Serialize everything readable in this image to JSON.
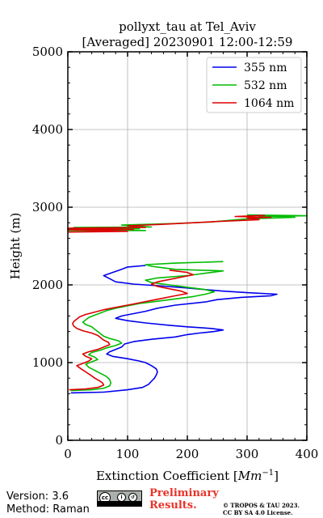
{
  "chart_data": {
    "type": "line",
    "title_line1": "pollyxt_tau at Tel_Aviv",
    "title_line2": "[Averaged] 20230901 12:00-12:59",
    "xlabel": "Extinction Coefficient [",
    "xlabel_unit": "Mm",
    "xlabel_exp": "−1",
    "xlabel_close": "]",
    "ylabel": "Height (m)",
    "xlim": [
      0,
      400
    ],
    "ylim": [
      0,
      5000
    ],
    "xticks": [
      0,
      100,
      200,
      300,
      400
    ],
    "yticks": [
      0,
      1000,
      2000,
      3000,
      4000,
      5000
    ],
    "grid": true,
    "legend_position": "top-right",
    "series": [
      {
        "name": "355 nm",
        "color": "#0000ee",
        "points": [
          [
            5,
            610
          ],
          [
            60,
            620
          ],
          [
            100,
            650
          ],
          [
            125,
            680
          ],
          [
            135,
            720
          ],
          [
            140,
            760
          ],
          [
            145,
            800
          ],
          [
            148,
            840
          ],
          [
            150,
            880
          ],
          [
            148,
            920
          ],
          [
            140,
            960
          ],
          [
            130,
            1000
          ],
          [
            120,
            1020
          ],
          [
            100,
            1050
          ],
          [
            75,
            1080
          ],
          [
            65,
            1110
          ],
          [
            70,
            1140
          ],
          [
            80,
            1170
          ],
          [
            90,
            1200
          ],
          [
            95,
            1240
          ],
          [
            110,
            1270
          ],
          [
            140,
            1300
          ],
          [
            180,
            1330
          ],
          [
            200,
            1360
          ],
          [
            220,
            1380
          ],
          [
            245,
            1400
          ],
          [
            260,
            1420
          ],
          [
            240,
            1440
          ],
          [
            200,
            1460
          ],
          [
            170,
            1480
          ],
          [
            130,
            1510
          ],
          [
            100,
            1540
          ],
          [
            80,
            1570
          ],
          [
            90,
            1600
          ],
          [
            110,
            1630
          ],
          [
            130,
            1660
          ],
          [
            150,
            1700
          ],
          [
            180,
            1740
          ],
          [
            230,
            1780
          ],
          [
            250,
            1810
          ],
          [
            290,
            1840
          ],
          [
            340,
            1860
          ],
          [
            350,
            1880
          ],
          [
            300,
            1900
          ],
          [
            260,
            1920
          ],
          [
            230,
            1940
          ],
          [
            200,
            1960
          ],
          [
            150,
            1990
          ],
          [
            110,
            2010
          ],
          [
            80,
            2040
          ],
          [
            70,
            2080
          ],
          [
            60,
            2120
          ],
          [
            75,
            2160
          ],
          [
            90,
            2200
          ],
          [
            100,
            2230
          ],
          [
            130,
            2250
          ]
        ]
      },
      {
        "name": "532 nm",
        "color": "#00bb00",
        "points": [
          [
            5,
            640
          ],
          [
            40,
            650
          ],
          [
            60,
            670
          ],
          [
            70,
            700
          ],
          [
            72,
            740
          ],
          [
            70,
            780
          ],
          [
            65,
            820
          ],
          [
            55,
            860
          ],
          [
            45,
            900
          ],
          [
            35,
            940
          ],
          [
            30,
            980
          ],
          [
            40,
            1010
          ],
          [
            50,
            1040
          ],
          [
            45,
            1070
          ],
          [
            35,
            1100
          ],
          [
            40,
            1130
          ],
          [
            55,
            1160
          ],
          [
            65,
            1190
          ],
          [
            80,
            1220
          ],
          [
            90,
            1250
          ],
          [
            85,
            1280
          ],
          [
            70,
            1310
          ],
          [
            60,
            1340
          ],
          [
            55,
            1370
          ],
          [
            50,
            1400
          ],
          [
            45,
            1430
          ],
          [
            40,
            1460
          ],
          [
            30,
            1490
          ],
          [
            25,
            1520
          ],
          [
            30,
            1550
          ],
          [
            35,
            1580
          ],
          [
            45,
            1610
          ],
          [
            55,
            1640
          ],
          [
            65,
            1670
          ],
          [
            80,
            1700
          ],
          [
            100,
            1730
          ],
          [
            120,
            1760
          ],
          [
            150,
            1790
          ],
          [
            180,
            1820
          ],
          [
            210,
            1850
          ],
          [
            230,
            1880
          ],
          [
            245,
            1910
          ],
          [
            230,
            1940
          ],
          [
            200,
            1970
          ],
          [
            170,
            2000
          ],
          [
            140,
            2030
          ],
          [
            130,
            2060
          ],
          [
            150,
            2090
          ],
          [
            200,
            2120
          ],
          [
            230,
            2150
          ],
          [
            260,
            2180
          ],
          [
            180,
            2200
          ],
          [
            160,
            2220
          ],
          [
            140,
            2240
          ],
          [
            130,
            2260
          ],
          [
            180,
            2280
          ],
          [
            260,
            2300
          ]
        ]
      },
      {
        "name": "1064 nm",
        "color": "#dd0000",
        "points": [
          [
            2,
            650
          ],
          [
            30,
            660
          ],
          [
            50,
            680
          ],
          [
            60,
            710
          ],
          [
            58,
            740
          ],
          [
            52,
            770
          ],
          [
            45,
            800
          ],
          [
            38,
            840
          ],
          [
            30,
            880
          ],
          [
            22,
            920
          ],
          [
            15,
            960
          ],
          [
            25,
            990
          ],
          [
            35,
            1020
          ],
          [
            40,
            1050
          ],
          [
            30,
            1080
          ],
          [
            25,
            1110
          ],
          [
            35,
            1140
          ],
          [
            50,
            1170
          ],
          [
            60,
            1200
          ],
          [
            70,
            1230
          ],
          [
            68,
            1260
          ],
          [
            60,
            1290
          ],
          [
            55,
            1320
          ],
          [
            50,
            1350
          ],
          [
            40,
            1380
          ],
          [
            25,
            1410
          ],
          [
            15,
            1440
          ],
          [
            10,
            1470
          ],
          [
            8,
            1500
          ],
          [
            10,
            1530
          ],
          [
            15,
            1560
          ],
          [
            20,
            1590
          ],
          [
            30,
            1620
          ],
          [
            45,
            1650
          ],
          [
            60,
            1680
          ],
          [
            80,
            1710
          ],
          [
            100,
            1740
          ],
          [
            120,
            1770
          ],
          [
            140,
            1800
          ],
          [
            160,
            1830
          ],
          [
            180,
            1860
          ],
          [
            200,
            1890
          ],
          [
            190,
            1920
          ],
          [
            170,
            1950
          ],
          [
            150,
            1980
          ],
          [
            140,
            2010
          ],
          [
            150,
            2040
          ],
          [
            170,
            2070
          ],
          [
            190,
            2100
          ],
          [
            210,
            2130
          ],
          [
            200,
            2160
          ],
          [
            170,
            2190
          ]
        ]
      },
      {
        "name": "",
        "color": "#00bb00",
        "points": [
          [
            0,
            2700
          ],
          [
            130,
            2700
          ],
          [
            0,
            2720
          ],
          [
            120,
            2725
          ],
          [
            10,
            2740
          ],
          [
            140,
            2745
          ],
          [
            90,
            2770
          ],
          [
            180,
            2790
          ],
          [
            240,
            2810
          ],
          [
            270,
            2830
          ],
          [
            300,
            2850
          ],
          [
            380,
            2870
          ],
          [
            320,
            2880
          ],
          [
            400,
            2890
          ],
          [
            300,
            2900
          ]
        ]
      },
      {
        "name": "",
        "color": "#dd0000",
        "points": [
          [
            0,
            2680
          ],
          [
            100,
            2690
          ],
          [
            0,
            2710
          ],
          [
            110,
            2715
          ],
          [
            0,
            2730
          ],
          [
            130,
            2740
          ],
          [
            100,
            2760
          ],
          [
            160,
            2780
          ],
          [
            210,
            2800
          ],
          [
            260,
            2820
          ],
          [
            320,
            2840
          ],
          [
            300,
            2860
          ],
          [
            340,
            2870
          ],
          [
            280,
            2880
          ],
          [
            330,
            2895
          ]
        ]
      }
    ]
  },
  "footer": {
    "version": "Version: 3.6",
    "method": "Method: Raman",
    "preliminary_line1": "Preliminary",
    "preliminary_line2": "Results.",
    "copyright_line1": "© TROPOS & TAU 2023.",
    "copyright_line2": "CC BY SA 4.0 License."
  }
}
